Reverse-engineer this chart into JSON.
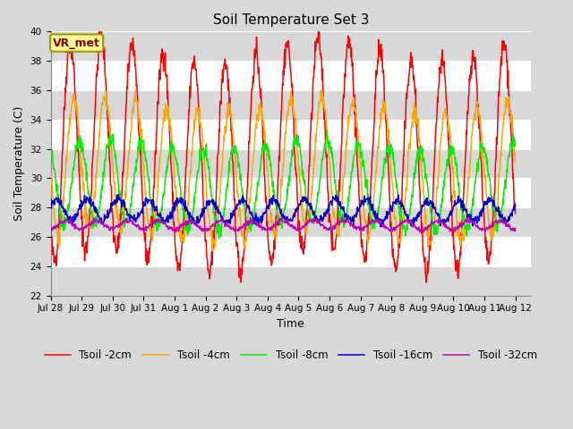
{
  "title": "Soil Temperature Set 3",
  "xlabel": "Time",
  "ylabel": "Soil Temperature (C)",
  "ylim": [
    22,
    40
  ],
  "annotation": "VR_met",
  "x_tick_labels": [
    "Jul 28",
    "Jul 29",
    "Jul 30",
    "Jul 31",
    "Aug 1",
    "Aug 2",
    "Aug 3",
    "Aug 4",
    "Aug 5",
    "Aug 6",
    "Aug 7",
    "Aug 8",
    "Aug 9",
    "Aug 10",
    "Aug 11",
    "Aug 12"
  ],
  "series": [
    {
      "label": "Tsoil -2cm",
      "color": "#FF0000",
      "base": 31.5,
      "amp": 7.2,
      "phase": 0.0,
      "noise": 0.4
    },
    {
      "label": "Tsoil -4cm",
      "color": "#FFA500",
      "base": 30.5,
      "amp": 4.5,
      "phase": 0.12,
      "noise": 0.3
    },
    {
      "label": "Tsoil -8cm",
      "color": "#00EE00",
      "base": 29.5,
      "amp": 2.8,
      "phase": 0.3,
      "noise": 0.25
    },
    {
      "label": "Tsoil -16cm",
      "color": "#0000CC",
      "base": 27.8,
      "amp": 0.7,
      "phase": 0.55,
      "noise": 0.15
    },
    {
      "label": "Tsoil -32cm",
      "color": "#BB00BB",
      "base": 26.8,
      "amp": 0.3,
      "phase": 0.85,
      "noise": 0.08
    }
  ],
  "fig_bg_color": "#D8D8D8",
  "plot_bg_color": "#E8E8E8",
  "alt_band_color": "#D8D8D8",
  "grid_color": "#FFFFFF",
  "title_fontsize": 11,
  "axis_label_fontsize": 9,
  "tick_fontsize": 7.5,
  "legend_fontsize": 8.5,
  "line_width": 1.1,
  "yticks": [
    22,
    24,
    26,
    28,
    30,
    32,
    34,
    36,
    38,
    40
  ]
}
